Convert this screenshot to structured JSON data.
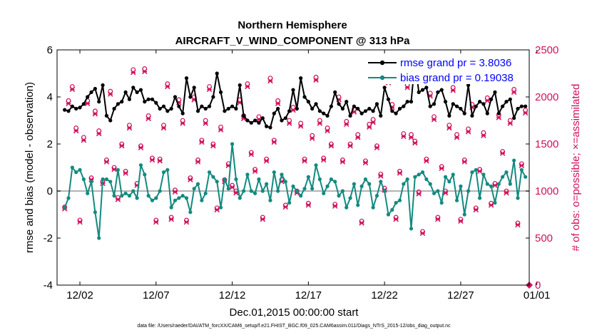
{
  "chart_data": {
    "type": "line",
    "title_line1": "Northern Hemisphere",
    "title_line2": "AIRCRAFT_V_WIND_COMPONENT @ 313 hPa",
    "ylabel": "rmse and bias (model - observation)",
    "ylabel_right": "# of obs: o=possible; ×=assimilated",
    "xlabel": "Dec.01,2015 00:00:00 start",
    "footer": "data file: /Users/raeder/DAI/ATM_forcXX/CAM6_setup/f.e21.FHIST_BGC.f09_025.CAM6assim.011/Diags_NTrS_2015-12/obs_diag_output.nc",
    "xlim": [
      0.5,
      31.5
    ],
    "ylim": [
      -4,
      6
    ],
    "ylim_right": [
      0,
      2500
    ],
    "xticks": [
      2,
      7,
      12,
      17,
      22,
      27,
      32
    ],
    "xtick_labels": [
      "12/02",
      "12/07",
      "12/12",
      "12/17",
      "12/22",
      "12/27",
      "01/01"
    ],
    "yticks": [
      -4,
      -2,
      0,
      2,
      4,
      6
    ],
    "ytick_labels": [
      "-4",
      "-2",
      "0",
      "2",
      "4",
      "6"
    ],
    "yticks_right": [
      0,
      500,
      1000,
      1500,
      2000,
      2500
    ],
    "ytick_labels_right": [
      "0",
      "500",
      "1000",
      "1500",
      "2000",
      "2500"
    ],
    "zero_line": 0,
    "colors": {
      "rmse": "#000000",
      "bias": "#138a80",
      "obs": "#d0105a",
      "legend_text": "#0000ff",
      "zero_line": "#b3b3b3"
    },
    "series": [
      {
        "name": "rmse grand pr = 3.8036",
        "x": [
          1.0,
          1.25,
          1.5,
          1.75,
          2.0,
          2.25,
          2.5,
          2.75,
          3.0,
          3.25,
          3.5,
          3.75,
          4.0,
          4.25,
          4.5,
          4.75,
          5.0,
          5.25,
          5.5,
          5.75,
          6.0,
          6.25,
          6.5,
          6.75,
          7.0,
          7.25,
          7.5,
          7.75,
          8.0,
          8.25,
          8.5,
          8.75,
          9.0,
          9.25,
          9.5,
          9.75,
          10.0,
          10.25,
          10.5,
          10.75,
          11.0,
          11.25,
          11.5,
          11.75,
          12.0,
          12.25,
          12.5,
          12.75,
          13.0,
          13.25,
          13.5,
          13.75,
          14.0,
          14.25,
          14.5,
          14.75,
          15.0,
          15.25,
          15.5,
          15.75,
          16.0,
          16.25,
          16.5,
          16.75,
          17.0,
          17.25,
          17.5,
          17.75,
          18.0,
          18.25,
          18.5,
          18.75,
          19.0,
          19.25,
          19.5,
          19.75,
          20.0,
          20.25,
          20.5,
          20.75,
          21.0,
          21.25,
          21.5,
          21.75,
          22.0,
          22.25,
          22.5,
          22.75,
          23.0,
          23.25,
          23.5,
          23.75,
          24.0,
          24.25,
          24.5,
          24.75,
          25.0,
          25.25,
          25.5,
          25.75,
          26.0,
          26.25,
          26.5,
          26.75,
          27.0,
          27.25,
          27.5,
          27.75,
          28.0,
          28.25,
          28.5,
          28.75,
          29.0,
          29.25,
          29.5,
          29.75,
          30.0,
          30.25,
          30.5,
          30.75,
          31.0,
          31.25
        ],
        "values": [
          3.45,
          3.4,
          3.6,
          3.5,
          3.55,
          3.7,
          4.0,
          4.2,
          4.35,
          3.8,
          4.5,
          3.2,
          3.0,
          3.5,
          3.7,
          3.8,
          4.2,
          3.9,
          4.4,
          4.2,
          4.3,
          3.8,
          3.9,
          3.9,
          3.75,
          3.5,
          3.6,
          3.4,
          3.5,
          4.0,
          3.6,
          3.3,
          4.8,
          4.0,
          4.4,
          3.4,
          3.6,
          3.5,
          3.6,
          4.0,
          5.0,
          4.2,
          3.4,
          3.5,
          3.6,
          3.5,
          4.5,
          3.2,
          3.0,
          2.9,
          3.0,
          2.9,
          3.1,
          2.75,
          2.7,
          3.3,
          3.5,
          3.0,
          3.1,
          3.4,
          4.3,
          3.5,
          4.8,
          4.0,
          3.8,
          3.5,
          3.7,
          3.4,
          3.3,
          3.2,
          3.6,
          4.2,
          3.7,
          3.5,
          3.8,
          3.2,
          3.6,
          3.5,
          3.3,
          3.4,
          3.5,
          3.4,
          3.7,
          3.2,
          4.4,
          3.9,
          3.4,
          3.3,
          3.5,
          3.6,
          3.8,
          3.8,
          5.55,
          4.2,
          4.3,
          4.4,
          3.6,
          3.7,
          4.2,
          4.3,
          3.8,
          3.2,
          3.7,
          3.6,
          3.5,
          3.3,
          4.5,
          3.2,
          3.6,
          3.8,
          3.7,
          3.3,
          3.9,
          4.2,
          3.3,
          3.6,
          3.8,
          3.9,
          3.1,
          3.5,
          3.6,
          3.6
        ],
        "color": "#000000"
      },
      {
        "name": "bias grand pr = 0.19038",
        "x": [
          1.0,
          1.25,
          1.5,
          1.75,
          2.0,
          2.25,
          2.5,
          2.75,
          3.0,
          3.25,
          3.5,
          3.75,
          4.0,
          4.25,
          4.5,
          4.75,
          5.0,
          5.25,
          5.5,
          5.75,
          6.0,
          6.25,
          6.5,
          6.75,
          7.0,
          7.25,
          7.5,
          7.75,
          8.0,
          8.25,
          8.5,
          8.75,
          9.0,
          9.25,
          9.5,
          9.75,
          10.0,
          10.25,
          10.5,
          10.75,
          11.0,
          11.25,
          11.5,
          11.75,
          12.0,
          12.25,
          12.5,
          12.75,
          13.0,
          13.25,
          13.5,
          13.75,
          14.0,
          14.25,
          14.5,
          14.75,
          15.0,
          15.25,
          15.5,
          15.75,
          16.0,
          16.25,
          16.5,
          16.75,
          17.0,
          17.25,
          17.5,
          17.75,
          18.0,
          18.25,
          18.5,
          18.75,
          19.0,
          19.25,
          19.5,
          19.75,
          20.0,
          20.25,
          20.5,
          20.75,
          21.0,
          21.25,
          21.5,
          21.75,
          22.0,
          22.25,
          22.5,
          22.75,
          23.0,
          23.25,
          23.5,
          23.75,
          24.0,
          24.25,
          24.5,
          24.75,
          25.0,
          25.25,
          25.5,
          25.75,
          26.0,
          26.25,
          26.5,
          26.75,
          27.0,
          27.25,
          27.5,
          27.75,
          28.0,
          28.25,
          28.5,
          28.75,
          29.0,
          29.25,
          29.5,
          29.75,
          30.0,
          30.25,
          30.5,
          30.75,
          31.0,
          31.25
        ],
        "values": [
          -0.7,
          -0.3,
          1.0,
          0.8,
          0.9,
          0.5,
          -0.1,
          0.4,
          -0.9,
          -2.0,
          0.5,
          0.5,
          0.4,
          -0.2,
          0.9,
          -0.2,
          -0.1,
          -0.2,
          0.0,
          -0.3,
          1.1,
          0.7,
          -0.2,
          -0.4,
          -0.3,
          0.0,
          0.8,
          0.9,
          -0.7,
          -0.4,
          -0.3,
          -0.2,
          -0.3,
          -0.9,
          0.1,
          0.3,
          -0.4,
          -0.1,
          0.8,
          0.6,
          0.4,
          -0.7,
          0.5,
          0.1,
          2.0,
          0.5,
          -0.3,
          0.0,
          0.7,
          0.0,
          -0.1,
          0.5,
          0.0,
          0.3,
          -0.4,
          0.8,
          0.0,
          0.7,
          0.4,
          -0.5,
          0.2,
          0.0,
          -0.2,
          0.1,
          0.6,
          0.1,
          1.1,
          0.5,
          -0.1,
          0.2,
          0.5,
          0.4,
          -0.2,
          0.0,
          -0.7,
          -0.3,
          0.3,
          -0.6,
          0.2,
          0.5,
          0.3,
          -0.7,
          -0.2,
          0.4,
          0.0,
          -1.0,
          -0.8,
          -0.5,
          -0.4,
          0.3,
          0.5,
          -1.6,
          0.6,
          0.7,
          0.8,
          0.5,
          0.3,
          -0.1,
          0.0,
          -0.5,
          0.6,
          0.4,
          0.7,
          -0.4,
          0.2,
          -1.0,
          0.0,
          0.8,
          0.9,
          -0.3,
          0.7,
          0.3,
          0.2,
          -0.5,
          0.3,
          0.6,
          0.8,
          0.3,
          1.3,
          -0.3,
          0.9,
          0.6
        ],
        "color": "#138a80"
      },
      {
        "name": "obs possible (o)",
        "x": [
          1.0,
          1.25,
          1.5,
          1.75,
          2.0,
          2.25,
          2.5,
          2.75,
          3.0,
          3.25,
          3.5,
          3.75,
          4.0,
          4.25,
          4.5,
          4.75,
          5.0,
          5.25,
          5.5,
          5.75,
          6.0,
          6.25,
          6.5,
          6.75,
          7.0,
          7.25,
          7.5,
          7.75,
          8.0,
          8.25,
          8.5,
          8.75,
          9.0,
          9.25,
          9.5,
          9.75,
          10.0,
          10.25,
          10.5,
          10.75,
          11.0,
          11.25,
          11.5,
          11.75,
          12.0,
          12.25,
          12.5,
          12.75,
          13.0,
          13.25,
          13.5,
          13.75,
          14.0,
          14.25,
          14.5,
          14.75,
          15.0,
          15.25,
          15.5,
          15.75,
          16.0,
          16.25,
          16.5,
          16.75,
          17.0,
          17.25,
          17.5,
          17.75,
          18.0,
          18.25,
          18.5,
          18.75,
          19.0,
          19.25,
          19.5,
          19.75,
          20.0,
          20.25,
          20.5,
          20.75,
          21.0,
          21.25,
          21.5,
          21.75,
          22.0,
          22.25,
          22.5,
          22.75,
          23.0,
          23.25,
          23.5,
          23.75,
          24.0,
          24.25,
          24.5,
          24.75,
          25.0,
          25.25,
          25.5,
          25.75,
          26.0,
          26.25,
          26.5,
          26.75,
          27.0,
          27.25,
          27.5,
          27.75,
          28.0,
          28.25,
          28.5,
          28.75,
          29.0,
          29.25,
          29.5,
          29.75,
          30.0,
          30.25,
          30.5,
          30.75,
          31.0,
          31.25
        ],
        "values": [
          830,
          1960,
          2110,
          1670,
          690,
          1570,
          1960,
          1140,
          1850,
          1640,
          1100,
          1330,
          2060,
          1250,
          930,
          1500,
          1210,
          1700,
          2290,
          1080,
          1480,
          2300,
          1800,
          1350,
          690,
          1340,
          1700,
          2140,
          720,
          1010,
          1970,
          1750,
          690,
          1140,
          2000,
          1330,
          1540,
          1750,
          2110,
          1500,
          820,
          1680,
          1120,
          1290,
          1060,
          1000,
          1970,
          1800,
          2140,
          1410,
          1230,
          1790,
          720,
          1340,
          2200,
          1540,
          1960,
          1120,
          850,
          1750,
          1890,
          1000,
          1720,
          1340,
          870,
          1590,
          2210,
          1750,
          1350,
          1670,
          1500,
          860,
          2000,
          1330,
          1740,
          1500,
          1870,
          1600,
          680,
          1320,
          1710,
          1760,
          1480,
          1180,
          1030,
          2180,
          1920,
          720,
          1210,
          1610,
          2130,
          1600,
          1530,
          990,
          570,
          1340,
          2040,
          1790,
          720,
          1260,
          1000,
          1700,
          2100,
          1600,
          700,
          1330,
          1660,
          1920,
          820,
          1230,
          1620,
          1990,
          870,
          1080,
          1810,
          1420,
          1000,
          1750,
          2080,
          660,
          1290,
          1860
        ],
        "color": "#d0105a"
      },
      {
        "name": "obs assimilated (×)",
        "x": [
          1.0,
          1.25,
          1.5,
          1.75,
          2.0,
          2.25,
          2.5,
          2.75,
          3.0,
          3.25,
          3.5,
          3.75,
          4.0,
          4.25,
          4.5,
          4.75,
          5.0,
          5.25,
          5.5,
          5.75,
          6.0,
          6.25,
          6.5,
          6.75,
          7.0,
          7.25,
          7.5,
          7.75,
          8.0,
          8.25,
          8.5,
          8.75,
          9.0,
          9.25,
          9.5,
          9.75,
          10.0,
          10.25,
          10.5,
          10.75,
          11.0,
          11.25,
          11.5,
          11.75,
          12.0,
          12.25,
          12.5,
          12.75,
          13.0,
          13.25,
          13.5,
          13.75,
          14.0,
          14.25,
          14.5,
          14.75,
          15.0,
          15.25,
          15.5,
          15.75,
          16.0,
          16.25,
          16.5,
          16.75,
          17.0,
          17.25,
          17.5,
          17.75,
          18.0,
          18.25,
          18.5,
          18.75,
          19.0,
          19.25,
          19.5,
          19.75,
          20.0,
          20.25,
          20.5,
          20.75,
          21.0,
          21.25,
          21.5,
          21.75,
          22.0,
          22.25,
          22.5,
          22.75,
          23.0,
          23.25,
          23.5,
          23.75,
          24.0,
          24.25,
          24.5,
          24.75,
          25.0,
          25.25,
          25.5,
          25.75,
          26.0,
          26.25,
          26.5,
          26.75,
          27.0,
          27.25,
          27.5,
          27.75,
          28.0,
          28.25,
          28.5,
          28.75,
          29.0,
          29.25,
          29.5,
          29.75,
          30.0,
          30.25,
          30.5,
          30.75,
          31.0,
          31.25
        ],
        "values": [
          810,
          1930,
          2080,
          1640,
          670,
          1540,
          1930,
          1120,
          1820,
          1610,
          1080,
          1310,
          2030,
          1230,
          910,
          1480,
          1190,
          1670,
          2260,
          1060,
          1460,
          2270,
          1770,
          1330,
          670,
          1320,
          1670,
          2110,
          700,
          990,
          1940,
          1720,
          670,
          1120,
          1970,
          1310,
          1520,
          1720,
          2080,
          1480,
          800,
          1650,
          1100,
          1270,
          1040,
          980,
          1940,
          1770,
          2110,
          1390,
          1210,
          1760,
          700,
          1320,
          2170,
          1520,
          1930,
          1100,
          830,
          1720,
          1860,
          980,
          1690,
          1320,
          850,
          1560,
          2180,
          1720,
          1330,
          1640,
          1480,
          840,
          1970,
          1310,
          1710,
          1480,
          1840,
          1570,
          660,
          1300,
          1680,
          1730,
          1460,
          1160,
          1010,
          2150,
          1890,
          700,
          1190,
          1580,
          2100,
          1570,
          1510,
          970,
          550,
          1320,
          2010,
          1760,
          700,
          1240,
          980,
          1670,
          2070,
          1570,
          680,
          1310,
          1630,
          1890,
          800,
          1210,
          1590,
          1960,
          850,
          1060,
          1780,
          1400,
          980,
          1720,
          2050,
          640,
          1270,
          1830
        ],
        "color": "#d0105a"
      }
    ],
    "legend": [
      {
        "label": "rmse grand pr = 3.8036",
        "color": "#000000"
      },
      {
        "label": "bias grand pr = 0.19038",
        "color": "#138a80"
      }
    ],
    "legend_position": "top-right",
    "grid": false
  }
}
